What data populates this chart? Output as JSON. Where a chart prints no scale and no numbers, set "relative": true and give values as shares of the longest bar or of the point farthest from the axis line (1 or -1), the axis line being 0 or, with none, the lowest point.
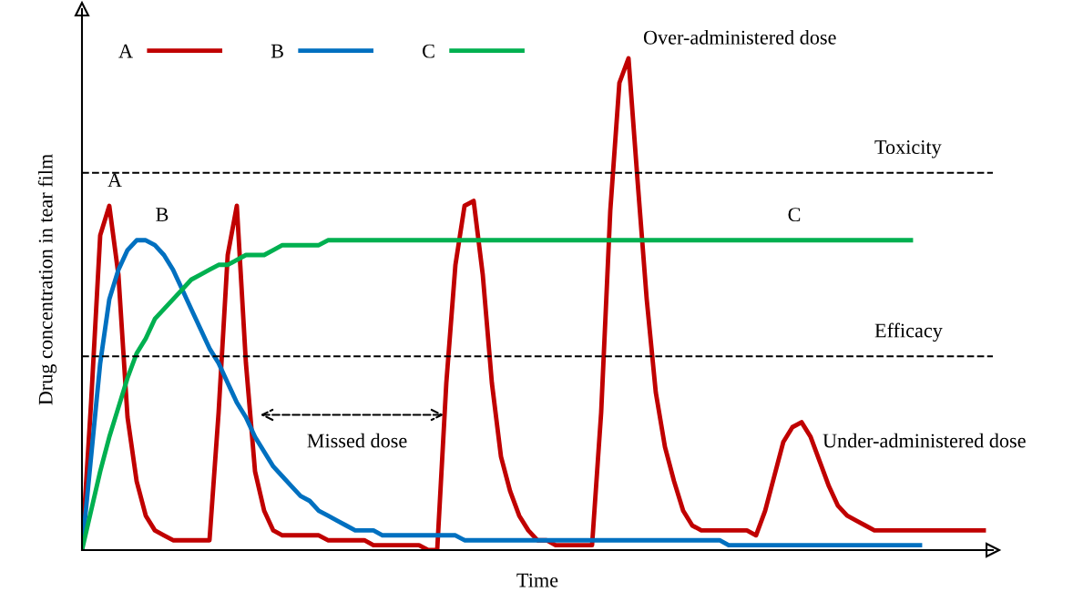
{
  "chart_data": {
    "type": "line",
    "relative": true,
    "xlabel": "Time",
    "ylabel": "Drug concentration in tear film",
    "categories": [
      null,
      null,
      null,
      null,
      null,
      null,
      null,
      null,
      null,
      null,
      null,
      null,
      null,
      null,
      null,
      null,
      null,
      null,
      null,
      null,
      null,
      null,
      null,
      null,
      null,
      null,
      null,
      null,
      null,
      null,
      null,
      null,
      null,
      null,
      null,
      null,
      null,
      null,
      null,
      null,
      null,
      null,
      null,
      null,
      null,
      null,
      null,
      null,
      null,
      null,
      null,
      null,
      null,
      null,
      null,
      null,
      null,
      null,
      null,
      null,
      null,
      null,
      null,
      null,
      null,
      null,
      null,
      null,
      null,
      null,
      null,
      null,
      null,
      null,
      null,
      null,
      null,
      null,
      null,
      null,
      null,
      null,
      null,
      null,
      null,
      null,
      null,
      null,
      null,
      null,
      null,
      null,
      null,
      null,
      null,
      null,
      null,
      null,
      null,
      null
    ],
    "series": [
      {
        "name": "A",
        "color": "#c00000",
        "values": [
          0,
          0.3,
          0.64,
          0.7,
          0.56,
          0.27,
          0.14,
          0.07,
          0.04,
          0.03,
          0.02,
          0.02,
          0.02,
          0.02,
          0.02,
          0.28,
          0.6,
          0.7,
          0.38,
          0.16,
          0.08,
          0.04,
          0.03,
          0.03,
          0.03,
          0.03,
          0.03,
          0.02,
          0.02,
          0.02,
          0.02,
          0.02,
          0.01,
          0.01,
          0.01,
          0.01,
          0.01,
          0.01,
          0.0,
          0.0,
          0.34,
          0.58,
          0.7,
          0.71,
          0.56,
          0.34,
          0.19,
          0.12,
          0.07,
          0.04,
          0.02,
          0.02,
          0.01,
          0.01,
          0.01,
          0.01,
          0.01,
          0.28,
          0.69,
          0.95,
          1.0,
          0.75,
          0.51,
          0.32,
          0.21,
          0.14,
          0.08,
          0.05,
          0.04,
          0.04,
          0.04,
          0.04,
          0.04,
          0.04,
          0.03,
          0.08,
          0.15,
          0.22,
          0.25,
          0.26,
          0.23,
          0.18,
          0.13,
          0.09,
          0.07,
          0.06,
          0.05,
          0.04,
          0.04,
          0.04,
          0.04,
          0.04,
          0.04,
          0.04,
          0.04,
          0.04,
          0.04,
          0.04,
          0.04,
          0.04
        ]
      },
      {
        "name": "B",
        "color": "#0070c0",
        "values": [
          0,
          0.19,
          0.38,
          0.51,
          0.57,
          0.61,
          0.63,
          0.63,
          0.62,
          0.6,
          0.57,
          0.53,
          0.49,
          0.45,
          0.41,
          0.38,
          0.34,
          0.3,
          0.27,
          0.23,
          0.2,
          0.17,
          0.15,
          0.13,
          0.11,
          0.1,
          0.08,
          0.07,
          0.06,
          0.05,
          0.04,
          0.04,
          0.04,
          0.03,
          0.03,
          0.03,
          0.03,
          0.03,
          0.03,
          0.03,
          0.03,
          0.03,
          0.02,
          0.02,
          0.02,
          0.02,
          0.02,
          0.02,
          0.02,
          0.02,
          0.02,
          0.02,
          0.02,
          0.02,
          0.02,
          0.02,
          0.02,
          0.02,
          0.02,
          0.02,
          0.02,
          0.02,
          0.02,
          0.02,
          0.02,
          0.02,
          0.02,
          0.02,
          0.02,
          0.02,
          0.02,
          0.01,
          0.01,
          0.01,
          0.01,
          0.01,
          0.01,
          0.01,
          0.01,
          0.01,
          0.01,
          0.01,
          0.01,
          0.01,
          0.01,
          0.01,
          0.01,
          0.01,
          0.01,
          0.01,
          0.01,
          0.01,
          0.01,
          null,
          null,
          null,
          null,
          null,
          null,
          null
        ]
      },
      {
        "name": "C",
        "color": "#00b050",
        "values": [
          0,
          0.08,
          0.16,
          0.23,
          0.29,
          0.35,
          0.4,
          0.43,
          0.47,
          0.49,
          0.51,
          0.53,
          0.55,
          0.56,
          0.57,
          0.58,
          0.58,
          0.59,
          0.6,
          0.6,
          0.6,
          0.61,
          0.62,
          0.62,
          0.62,
          0.62,
          0.62,
          0.63,
          0.63,
          0.63,
          0.63,
          0.63,
          0.63,
          0.63,
          0.63,
          0.63,
          0.63,
          0.63,
          0.63,
          0.63,
          0.63,
          0.63,
          0.63,
          0.63,
          0.63,
          0.63,
          0.63,
          0.63,
          0.63,
          0.63,
          0.63,
          0.63,
          0.63,
          0.63,
          0.63,
          0.63,
          0.63,
          0.63,
          0.63,
          0.63,
          0.63,
          0.63,
          0.63,
          0.63,
          0.63,
          0.63,
          0.63,
          0.63,
          0.63,
          0.63,
          0.63,
          0.63,
          0.63,
          0.63,
          0.63,
          0.63,
          0.63,
          0.63,
          0.63,
          0.63,
          0.63,
          0.63,
          0.63,
          0.63,
          0.63,
          0.63,
          0.63,
          0.63,
          0.63,
          0.63,
          0.63,
          0.63,
          null,
          null,
          null,
          null,
          null,
          null,
          null,
          null
        ]
      }
    ],
    "ref_lines": [
      {
        "axis": "y",
        "value": 0.767,
        "label": "Toxicity",
        "color": "#000000",
        "line_style": "dashed"
      },
      {
        "axis": "y",
        "value": 0.394,
        "label": "Efficacy",
        "color": "#000000",
        "line_style": "dashed"
      }
    ],
    "annotations": [
      "A",
      "B",
      "C",
      "Over-administered dose",
      "Missed dose",
      "Under-administered dose"
    ],
    "legend": "top left",
    "marker": "none",
    "line_style": "solid"
  }
}
